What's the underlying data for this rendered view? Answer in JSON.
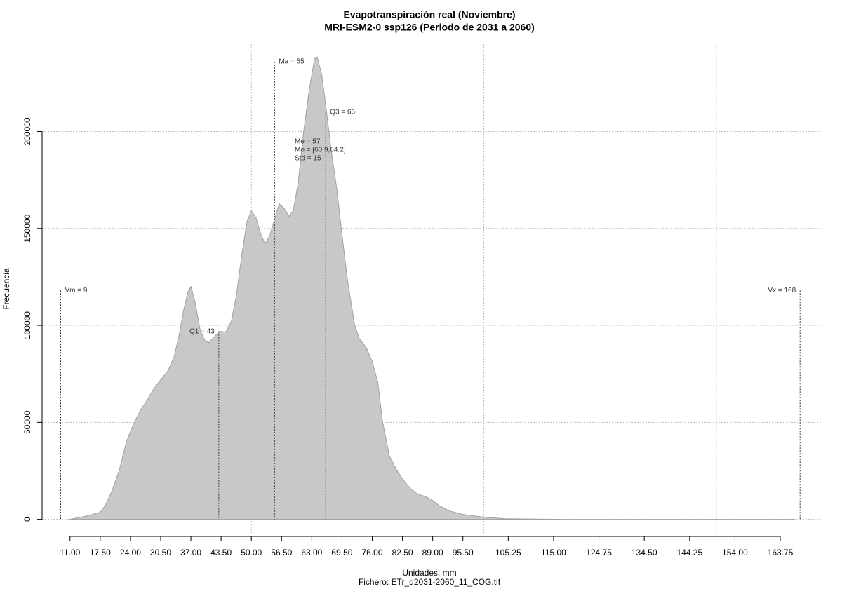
{
  "chart_data": {
    "type": "area",
    "title": "Evapotranspiración real (Noviembre)",
    "subtitle": "MRI-ESM2-0 ssp126 (Periodo de 2031 a 2060)",
    "xlabel": "Unidades: mm",
    "ylabel": "Frecuencia",
    "footer": "Fichero: ETr_d2031-2060_11_COG.tif",
    "color": "#c8c8c8",
    "line_color": "#a0a0a0",
    "x": [
      11,
      14.2,
      17.5,
      18.6,
      20,
      21.6,
      23.1,
      24.6,
      26.1,
      27.6,
      29.1,
      30.6,
      32.1,
      33.4,
      34.4,
      35.5,
      36.4,
      37,
      37.9,
      39,
      40,
      40.9,
      42,
      43.2,
      44.5,
      45.7,
      46.8,
      48,
      49.1,
      50,
      51,
      52.1,
      53,
      54,
      55.1,
      56,
      57.1,
      58.1,
      59,
      60.1,
      61.2,
      62.4,
      63.6,
      64.2,
      65.1,
      66.1,
      67.2,
      68.4,
      69.6,
      70.7,
      72.2,
      73.2,
      74.7,
      76,
      77.2,
      78.2,
      79.7,
      81.3,
      82.8,
      84.3,
      85.8,
      87.3,
      88.8,
      90.3,
      92.6,
      95.6,
      100.1,
      104.7,
      116.7,
      166.6
    ],
    "values": [
      0,
      1500,
      3600,
      7200,
      14500,
      25300,
      39800,
      48800,
      56000,
      61500,
      67600,
      72300,
      76700,
      83900,
      94000,
      108500,
      117500,
      120000,
      112100,
      97600,
      92200,
      91100,
      94000,
      96900,
      96600,
      102000,
      115700,
      137400,
      153700,
      159100,
      155500,
      146500,
      142100,
      146500,
      155500,
      162700,
      160200,
      156200,
      159100,
      173600,
      198900,
      220600,
      237600,
      238000,
      229700,
      211600,
      189900,
      170000,
      144700,
      123000,
      100500,
      93300,
      88600,
      81400,
      70500,
      50600,
      32500,
      25300,
      19900,
      15600,
      13000,
      11900,
      10100,
      7200,
      4300,
      2500,
      1100,
      300,
      0,
      0
    ],
    "xlim": [
      5,
      172.5
    ],
    "ylim": [
      -7000,
      245000
    ],
    "xticks": [
      {
        "value": 11,
        "label": "11.00"
      },
      {
        "value": 17.5,
        "label": "17.50"
      },
      {
        "value": 24,
        "label": "24.00"
      },
      {
        "value": 30.5,
        "label": "30.50"
      },
      {
        "value": 37,
        "label": "37.00"
      },
      {
        "value": 43.5,
        "label": "43.50"
      },
      {
        "value": 50,
        "label": "50.00"
      },
      {
        "value": 56.5,
        "label": "56.50"
      },
      {
        "value": 63,
        "label": "63.00"
      },
      {
        "value": 69.5,
        "label": "69.50"
      },
      {
        "value": 76,
        "label": "76.00"
      },
      {
        "value": 82.5,
        "label": "82.50"
      },
      {
        "value": 89,
        "label": "89.00"
      },
      {
        "value": 95.5,
        "label": "95.50"
      },
      {
        "value": 105.25,
        "label": "105.25"
      },
      {
        "value": 115,
        "label": "115.00"
      },
      {
        "value": 124.75,
        "label": "124.75"
      },
      {
        "value": 134.5,
        "label": "134.50"
      },
      {
        "value": 144.25,
        "label": "144.25"
      },
      {
        "value": 154,
        "label": "154.00"
      },
      {
        "value": 163.75,
        "label": "163.75"
      }
    ],
    "yticks": [
      0,
      50000,
      100000,
      150000,
      200000
    ],
    "xgrid": [
      50,
      100,
      150
    ],
    "grid": true,
    "markers": [
      {
        "label": "Vm = 9",
        "value": 9,
        "top": 118000,
        "side": "right"
      },
      {
        "label": "Q1 = 43",
        "value": 43,
        "top": 96900,
        "side": "left"
      },
      {
        "label": "Ma = 55",
        "value": 55,
        "top": 236000,
        "side": "right"
      },
      {
        "label": "Q3 = 66",
        "value": 66,
        "top": 210000,
        "side": "right"
      },
      {
        "label": "Vx = 168",
        "value": 168,
        "top": 118000,
        "side": "left"
      }
    ],
    "stats_text": [
      "Me = 57",
      "Mo = [60.9,64.2]",
      "Std = 15"
    ]
  }
}
